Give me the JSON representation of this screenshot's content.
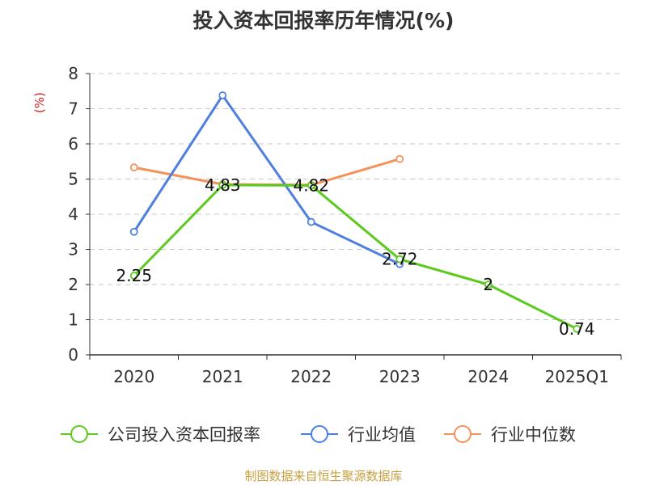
{
  "title": "投入资本回报率历年情况(%)",
  "source": "制图数据来自恒生聚源数据库",
  "colors": {
    "company": "#5cc91e",
    "avg": "#4f7fdf",
    "median": "#f5925a",
    "unit_label": "#d42020",
    "source": "#c8a040",
    "axis": "#333333",
    "grid": "#c8c8c8"
  },
  "chart_data": {
    "type": "line",
    "title": "投入资本回报率历年情况(%)",
    "unit_label": "(%)",
    "categories": [
      "2020",
      "2021",
      "2022",
      "2023",
      "2024",
      "2025Q1"
    ],
    "ylim": [
      0,
      8
    ],
    "yticks": [
      0,
      1,
      2,
      3,
      4,
      5,
      6,
      7,
      8
    ],
    "grid": true,
    "legend_position": "bottom",
    "series": [
      {
        "name": "公司投入资本回报率",
        "color": "#5cc91e",
        "values": [
          2.25,
          4.83,
          4.82,
          2.72,
          2,
          0.74
        ],
        "labels": [
          "2.25",
          "4.83",
          "4.82",
          "2.72",
          "2",
          "0.74"
        ]
      },
      {
        "name": "行业均值",
        "color": "#4f7fdf",
        "values": [
          3.5,
          7.38,
          3.78,
          2.58,
          null,
          null
        ]
      },
      {
        "name": "行业中位数",
        "color": "#f5925a",
        "values": [
          5.33,
          4.85,
          4.83,
          5.57,
          null,
          null
        ]
      }
    ]
  }
}
